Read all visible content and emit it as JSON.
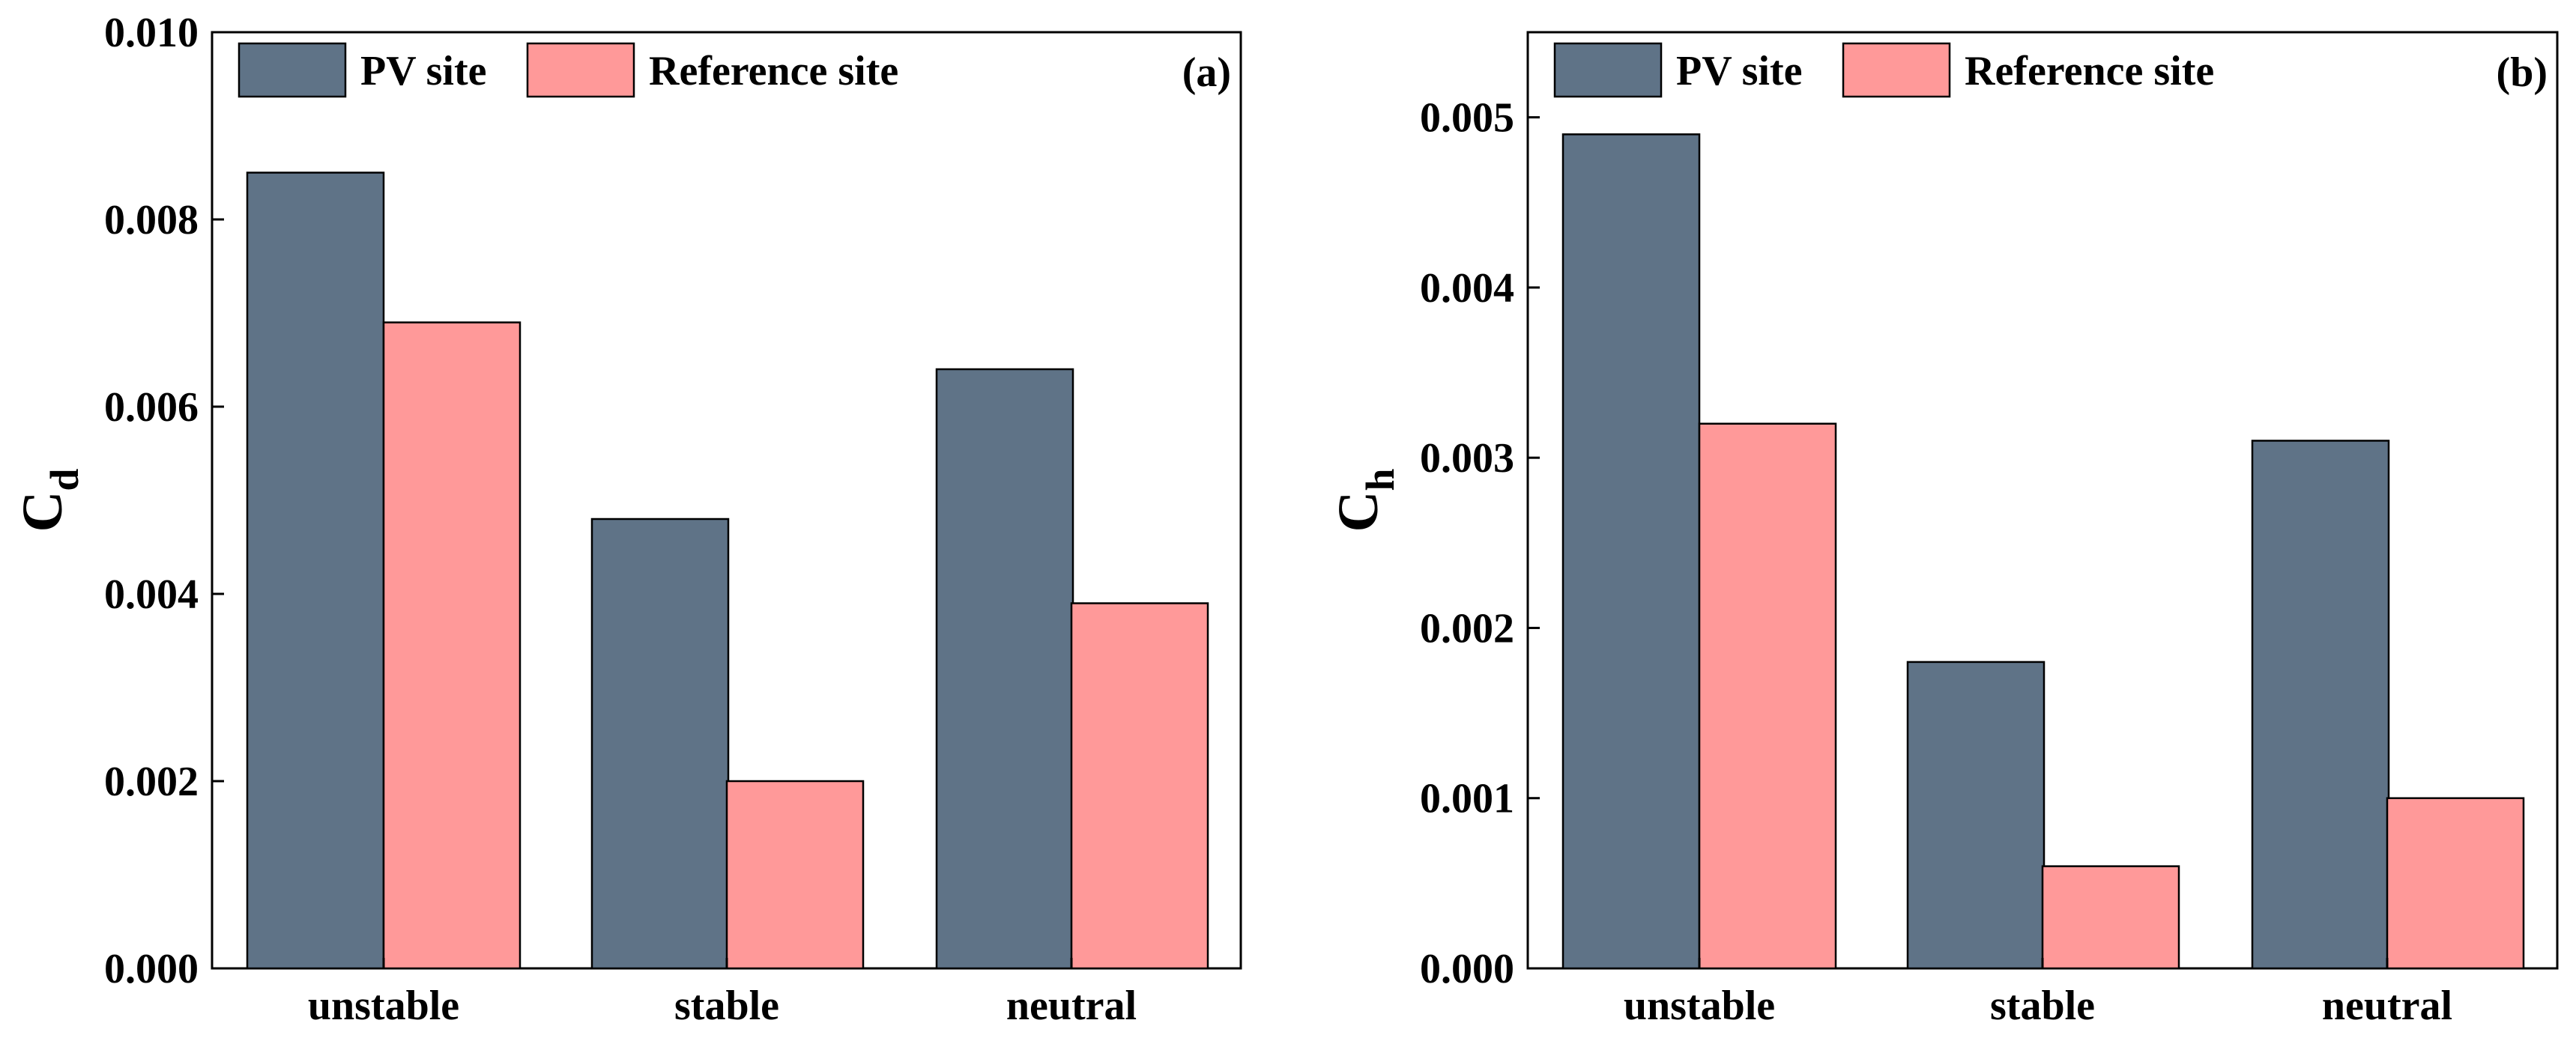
{
  "chart_data": [
    {
      "type": "bar",
      "panel": "(a)",
      "categories": [
        "unstable",
        "stable",
        "neutral"
      ],
      "series": [
        {
          "name": "PV site",
          "color": "#5f7387",
          "values": [
            0.0085,
            0.0048,
            0.0064
          ]
        },
        {
          "name": "Reference site",
          "color": "#ff9999",
          "values": [
            0.0069,
            0.002,
            0.0039
          ]
        }
      ],
      "ylabel_main": "C",
      "ylabel_sub": "d",
      "xlabel": "",
      "ylim": [
        0,
        0.01
      ],
      "yticks": [
        "0.000",
        "0.002",
        "0.004",
        "0.006",
        "0.008",
        "0.010"
      ],
      "legend_position": "top-left"
    },
    {
      "type": "bar",
      "panel": "(b)",
      "categories": [
        "unstable",
        "stable",
        "neutral"
      ],
      "series": [
        {
          "name": "PV site",
          "color": "#5f7387",
          "values": [
            0.0049,
            0.0018,
            0.0031
          ]
        },
        {
          "name": "Reference site",
          "color": "#ff9999",
          "values": [
            0.0032,
            0.0006,
            0.001
          ]
        }
      ],
      "ylabel_main": "C",
      "ylabel_sub": "h",
      "xlabel": "",
      "ylim": [
        0,
        0.0055
      ],
      "yticks": [
        "0.000",
        "0.001",
        "0.002",
        "0.003",
        "0.004",
        "0.005"
      ],
      "legend_position": "top-left"
    }
  ]
}
